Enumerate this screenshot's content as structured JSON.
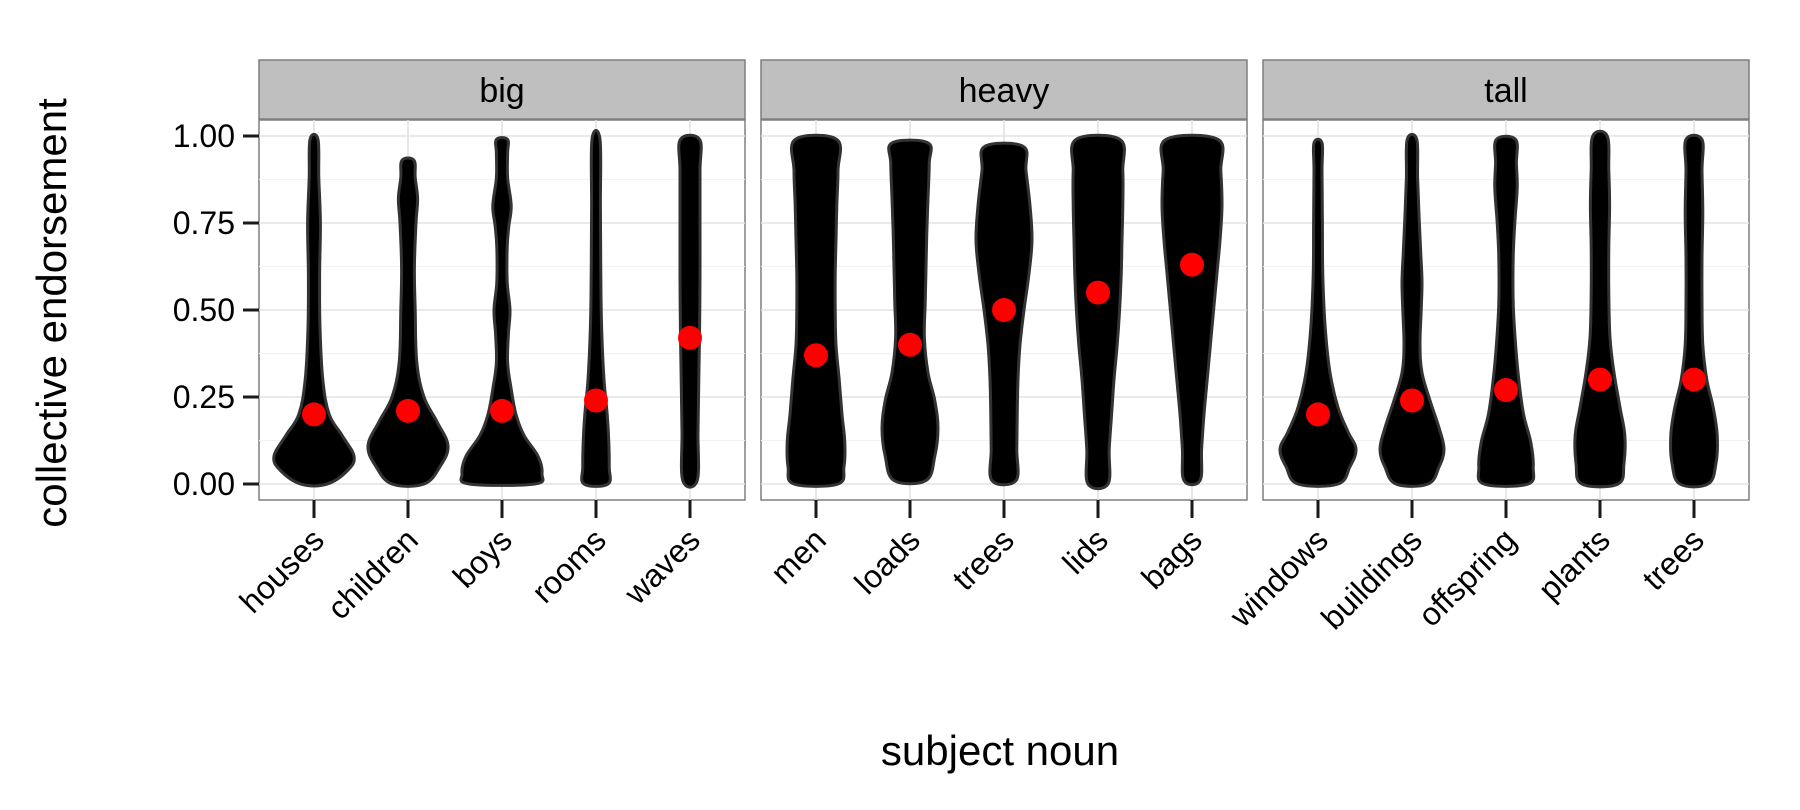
{
  "chart_data": {
    "type": "violin",
    "xlabel": "subject noun",
    "ylabel": "collective endorsement",
    "ylim": [
      0,
      1
    ],
    "yticks": [
      "0.00",
      "0.25",
      "0.50",
      "0.75",
      "1.00"
    ],
    "grid": true,
    "colors": {
      "violin_fill": "#000000",
      "violin_outline": "#333333",
      "mean_point": "#ff0000",
      "strip": "#bfbfbf"
    },
    "facets": [
      {
        "label": "big",
        "groups": [
          {
            "noun": "houses",
            "mean": 0.2,
            "min": 0.0,
            "max": 0.99,
            "shape": [
              [
                0.0,
                0.33
              ],
              [
                0.04,
                0.85
              ],
              [
                0.08,
                1.0
              ],
              [
                0.14,
                0.7
              ],
              [
                0.2,
                0.38
              ],
              [
                0.3,
                0.22
              ],
              [
                0.45,
                0.15
              ],
              [
                0.6,
                0.14
              ],
              [
                0.75,
                0.16
              ],
              [
                0.88,
                0.12
              ],
              [
                0.99,
                0.1
              ]
            ]
          },
          {
            "noun": "children",
            "mean": 0.21,
            "min": 0.0,
            "max": 0.93,
            "shape": [
              [
                0.0,
                0.4
              ],
              [
                0.05,
                0.8
              ],
              [
                0.11,
                1.0
              ],
              [
                0.18,
                0.72
              ],
              [
                0.25,
                0.4
              ],
              [
                0.35,
                0.22
              ],
              [
                0.5,
                0.18
              ],
              [
                0.62,
                0.16
              ],
              [
                0.75,
                0.2
              ],
              [
                0.82,
                0.24
              ],
              [
                0.88,
                0.18
              ],
              [
                0.93,
                0.15
              ]
            ]
          },
          {
            "noun": "boys",
            "mean": 0.21,
            "min": 0.0,
            "max": 0.99,
            "shape": [
              [
                0.0,
                0.82
              ],
              [
                0.03,
                1.0
              ],
              [
                0.08,
                0.9
              ],
              [
                0.14,
                0.55
              ],
              [
                0.2,
                0.35
              ],
              [
                0.28,
                0.22
              ],
              [
                0.35,
                0.14
              ],
              [
                0.43,
                0.16
              ],
              [
                0.5,
                0.2
              ],
              [
                0.58,
                0.13
              ],
              [
                0.68,
                0.13
              ],
              [
                0.74,
                0.17
              ],
              [
                0.8,
                0.23
              ],
              [
                0.88,
                0.14
              ],
              [
                0.95,
                0.14
              ],
              [
                0.99,
                0.14
              ]
            ]
          },
          {
            "noun": "rooms",
            "mean": 0.24,
            "min": 0.0,
            "max": 0.99,
            "shape": [
              [
                0.0,
                0.3
              ],
              [
                0.05,
                0.33
              ],
              [
                0.12,
                0.32
              ],
              [
                0.2,
                0.28
              ],
              [
                0.3,
                0.2
              ],
              [
                0.45,
                0.14
              ],
              [
                0.6,
                0.12
              ],
              [
                0.8,
                0.11
              ],
              [
                0.99,
                0.1
              ]
            ]
          },
          {
            "noun": "waves",
            "mean": 0.42,
            "min": 0.01,
            "max": 0.99,
            "shape": [
              [
                0.01,
                0.18
              ],
              [
                0.15,
                0.2
              ],
              [
                0.3,
                0.22
              ],
              [
                0.45,
                0.24
              ],
              [
                0.6,
                0.25
              ],
              [
                0.75,
                0.25
              ],
              [
                0.9,
                0.25
              ],
              [
                0.99,
                0.24
              ]
            ]
          }
        ]
      },
      {
        "label": "heavy",
        "groups": [
          {
            "noun": "men",
            "mean": 0.37,
            "min": 0.0,
            "max": 0.99,
            "shape": [
              [
                0.0,
                0.55
              ],
              [
                0.05,
                0.7
              ],
              [
                0.12,
                0.72
              ],
              [
                0.2,
                0.65
              ],
              [
                0.3,
                0.58
              ],
              [
                0.4,
                0.5
              ],
              [
                0.5,
                0.48
              ],
              [
                0.6,
                0.48
              ],
              [
                0.7,
                0.5
              ],
              [
                0.8,
                0.52
              ],
              [
                0.9,
                0.55
              ],
              [
                0.99,
                0.52
              ]
            ]
          },
          {
            "noun": "loads",
            "mean": 0.4,
            "min": 0.01,
            "max": 0.98,
            "shape": [
              [
                0.01,
                0.4
              ],
              [
                0.08,
                0.62
              ],
              [
                0.16,
                0.7
              ],
              [
                0.24,
                0.62
              ],
              [
                0.32,
                0.45
              ],
              [
                0.42,
                0.36
              ],
              [
                0.52,
                0.38
              ],
              [
                0.62,
                0.4
              ],
              [
                0.72,
                0.42
              ],
              [
                0.82,
                0.45
              ],
              [
                0.92,
                0.48
              ],
              [
                0.98,
                0.45
              ]
            ]
          },
          {
            "noun": "trees",
            "mean": 0.5,
            "min": 0.01,
            "max": 0.97,
            "shape": [
              [
                0.01,
                0.3
              ],
              [
                0.1,
                0.32
              ],
              [
                0.2,
                0.33
              ],
              [
                0.3,
                0.35
              ],
              [
                0.4,
                0.4
              ],
              [
                0.5,
                0.5
              ],
              [
                0.6,
                0.62
              ],
              [
                0.7,
                0.7
              ],
              [
                0.8,
                0.65
              ],
              [
                0.9,
                0.55
              ],
              [
                0.97,
                0.48
              ]
            ]
          },
          {
            "noun": "lids",
            "mean": 0.55,
            "min": 0.0,
            "max": 0.99,
            "shape": [
              [
                0.0,
                0.25
              ],
              [
                0.1,
                0.28
              ],
              [
                0.2,
                0.34
              ],
              [
                0.3,
                0.4
              ],
              [
                0.4,
                0.48
              ],
              [
                0.5,
                0.54
              ],
              [
                0.6,
                0.58
              ],
              [
                0.7,
                0.6
              ],
              [
                0.8,
                0.62
              ],
              [
                0.9,
                0.62
              ],
              [
                0.99,
                0.55
              ]
            ]
          },
          {
            "noun": "bags",
            "mean": 0.63,
            "min": 0.01,
            "max": 0.99,
            "shape": [
              [
                0.01,
                0.2
              ],
              [
                0.1,
                0.24
              ],
              [
                0.2,
                0.3
              ],
              [
                0.3,
                0.38
              ],
              [
                0.4,
                0.46
              ],
              [
                0.5,
                0.54
              ],
              [
                0.6,
                0.62
              ],
              [
                0.7,
                0.7
              ],
              [
                0.8,
                0.75
              ],
              [
                0.9,
                0.72
              ],
              [
                0.99,
                0.65
              ]
            ]
          }
        ]
      },
      {
        "label": "tall",
        "groups": [
          {
            "noun": "windows",
            "mean": 0.2,
            "min": 0.0,
            "max": 0.98,
            "shape": [
              [
                0.0,
                0.5
              ],
              [
                0.05,
                0.8
              ],
              [
                0.1,
                0.95
              ],
              [
                0.15,
                0.75
              ],
              [
                0.22,
                0.5
              ],
              [
                0.32,
                0.3
              ],
              [
                0.45,
                0.18
              ],
              [
                0.6,
                0.12
              ],
              [
                0.75,
                0.11
              ],
              [
                0.9,
                0.1
              ],
              [
                0.98,
                0.1
              ]
            ]
          },
          {
            "noun": "buildings",
            "mean": 0.24,
            "min": 0.0,
            "max": 0.99,
            "shape": [
              [
                0.0,
                0.4
              ],
              [
                0.05,
                0.68
              ],
              [
                0.1,
                0.8
              ],
              [
                0.16,
                0.68
              ],
              [
                0.24,
                0.45
              ],
              [
                0.32,
                0.25
              ],
              [
                0.4,
                0.2
              ],
              [
                0.5,
                0.23
              ],
              [
                0.58,
                0.25
              ],
              [
                0.66,
                0.22
              ],
              [
                0.76,
                0.18
              ],
              [
                0.88,
                0.14
              ],
              [
                0.99,
                0.12
              ]
            ]
          },
          {
            "noun": "offspring",
            "mean": 0.27,
            "min": 0.0,
            "max": 0.99,
            "shape": [
              [
                0.0,
                0.55
              ],
              [
                0.05,
                0.68
              ],
              [
                0.12,
                0.62
              ],
              [
                0.2,
                0.44
              ],
              [
                0.3,
                0.32
              ],
              [
                0.4,
                0.24
              ],
              [
                0.52,
                0.18
              ],
              [
                0.65,
                0.18
              ],
              [
                0.75,
                0.22
              ],
              [
                0.85,
                0.28
              ],
              [
                0.92,
                0.26
              ],
              [
                0.99,
                0.24
              ]
            ]
          },
          {
            "noun": "plants",
            "mean": 0.3,
            "min": 0.0,
            "max": 1.0,
            "shape": [
              [
                0.0,
                0.45
              ],
              [
                0.06,
                0.6
              ],
              [
                0.14,
                0.62
              ],
              [
                0.22,
                0.5
              ],
              [
                0.32,
                0.35
              ],
              [
                0.42,
                0.25
              ],
              [
                0.55,
                0.22
              ],
              [
                0.68,
                0.22
              ],
              [
                0.8,
                0.24
              ],
              [
                0.9,
                0.22
              ],
              [
                1.0,
                0.18
              ]
            ]
          },
          {
            "noun": "trees",
            "mean": 0.3,
            "min": 0.0,
            "max": 0.99,
            "shape": [
              [
                0.0,
                0.35
              ],
              [
                0.06,
                0.55
              ],
              [
                0.14,
                0.58
              ],
              [
                0.22,
                0.48
              ],
              [
                0.3,
                0.32
              ],
              [
                0.4,
                0.22
              ],
              [
                0.52,
                0.2
              ],
              [
                0.65,
                0.2
              ],
              [
                0.78,
                0.22
              ],
              [
                0.9,
                0.2
              ],
              [
                0.99,
                0.2
              ]
            ]
          }
        ]
      }
    ]
  }
}
